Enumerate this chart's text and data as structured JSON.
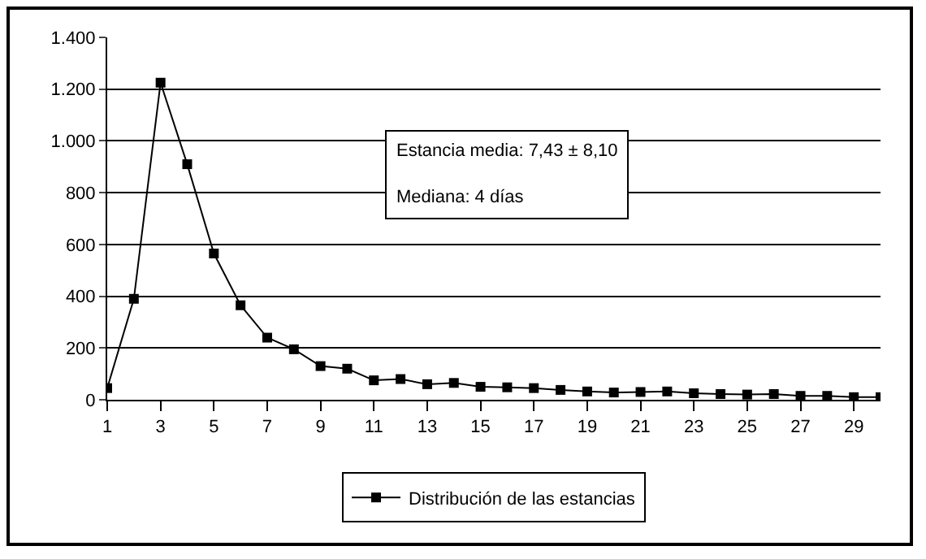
{
  "chart_data": {
    "type": "line",
    "x": [
      1,
      2,
      3,
      4,
      5,
      6,
      7,
      8,
      9,
      10,
      11,
      12,
      13,
      14,
      15,
      16,
      17,
      18,
      19,
      20,
      21,
      22,
      23,
      24,
      25,
      26,
      27,
      28,
      29,
      30
    ],
    "series": [
      {
        "name": "Distribución de las estancias",
        "color": "#000000",
        "values": [
          45,
          390,
          1225,
          910,
          565,
          365,
          240,
          195,
          130,
          120,
          75,
          80,
          60,
          65,
          50,
          48,
          45,
          38,
          32,
          28,
          30,
          32,
          25,
          22,
          20,
          22,
          15,
          15,
          10,
          10
        ]
      }
    ],
    "xlim": [
      1,
      30
    ],
    "xticks": [
      1,
      3,
      5,
      7,
      9,
      11,
      13,
      15,
      17,
      19,
      21,
      23,
      25,
      27,
      29
    ],
    "ylim": [
      0,
      1400
    ],
    "yticks": [
      0,
      200,
      400,
      600,
      800,
      {
        "value": 1000,
        "label": "1.000"
      },
      {
        "value": 1200,
        "label": "1.200"
      },
      {
        "value": 1400,
        "label": "1.400"
      }
    ],
    "grid": "y",
    "legend": "bottom",
    "marker": "square",
    "line_style": "solid",
    "annotations": [
      "Estancia media: 7,43 ± 8,10",
      "Mediana: 4 días"
    ]
  }
}
